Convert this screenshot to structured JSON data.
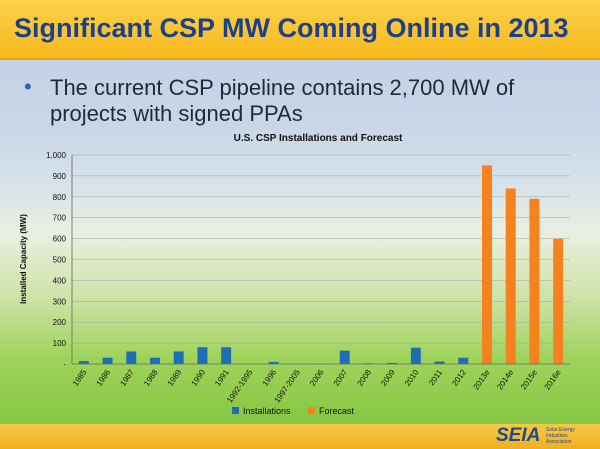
{
  "slide": {
    "title": "Significant CSP MW Coming Online in 2013",
    "bullet": "The current CSP pipeline contains 2,700 MW of projects with signed PPAs"
  },
  "logo": {
    "word": "SEIA",
    "tagline": "Solar Energy Industries Association"
  },
  "colors": {
    "installations": "#1c6fb5",
    "forecast": "#f5821f",
    "title_text": "#1d3f8c",
    "title_bar": "#f6b81e"
  },
  "chart_data": {
    "type": "bar",
    "title": "U.S. CSP Installations and Forecast",
    "xlabel": "",
    "ylabel": "Installed Capacity (MW)",
    "ylim": [
      0,
      1000
    ],
    "yticks": [
      "-",
      "100",
      "200",
      "300",
      "400",
      "500",
      "600",
      "700",
      "800",
      "900",
      "1,000"
    ],
    "grid": true,
    "legend_position": "bottom",
    "categories": [
      "1985",
      "1986",
      "1987",
      "1988",
      "1989",
      "1990",
      "1991",
      "1992-1995",
      "1996",
      "1997-2005",
      "2006",
      "2007",
      "2008",
      "2009",
      "2010",
      "2011",
      "2012",
      "2013e",
      "2014e",
      "2015e",
      "2016e"
    ],
    "series": [
      {
        "name": "Installations",
        "values": [
          14,
          30,
          60,
          30,
          60,
          80,
          80,
          0,
          10,
          0,
          1,
          64,
          3,
          5,
          78,
          12,
          30,
          null,
          null,
          null,
          null
        ]
      },
      {
        "name": "Forecast",
        "values": [
          null,
          null,
          null,
          null,
          null,
          null,
          null,
          null,
          null,
          null,
          null,
          null,
          null,
          null,
          null,
          null,
          null,
          950,
          840,
          790,
          600
        ]
      }
    ]
  }
}
